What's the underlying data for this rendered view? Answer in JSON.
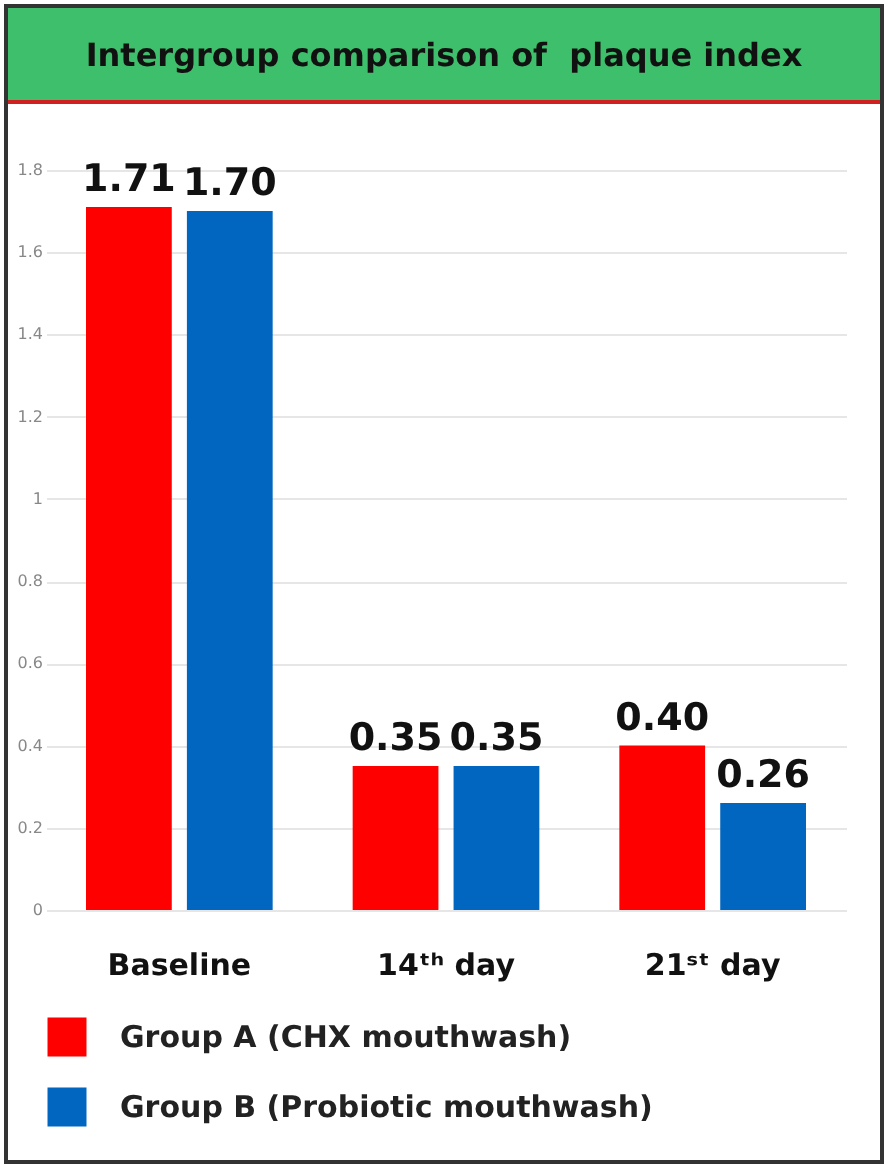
{
  "chart_data": {
    "type": "bar",
    "title": "Intergroup comparison of  plaque index",
    "categories": [
      "Baseline",
      "14ᵗʰ day",
      "21ˢᵗ day"
    ],
    "series": [
      {
        "name": "Group A (CHX mouthwash)",
        "color": "#ff0000",
        "values": [
          1.71,
          0.35,
          0.4
        ],
        "value_labels": [
          "1.71",
          "0.35",
          "0.40"
        ]
      },
      {
        "name": "Group B (Probiotic  mouthwash)",
        "color": "#0066c0",
        "values": [
          1.7,
          0.35,
          0.26
        ],
        "value_labels": [
          "1.70",
          "0.35",
          "0.26"
        ]
      }
    ],
    "ylim": [
      0,
      1.8
    ],
    "yticks": [
      0,
      0.2,
      0.4,
      0.6,
      0.8,
      1,
      1.2,
      1.4,
      1.6,
      1.8
    ],
    "grid": "y",
    "legend": "bottom"
  }
}
